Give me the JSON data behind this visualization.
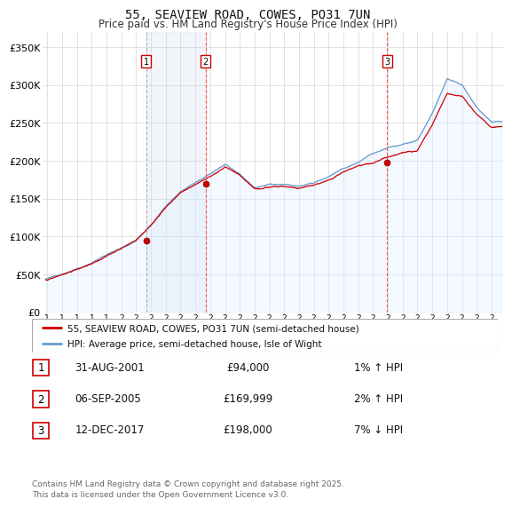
{
  "title": "55, SEAVIEW ROAD, COWES, PO31 7UN",
  "subtitle": "Price paid vs. HM Land Registry's House Price Index (HPI)",
  "ylim": [
    0,
    370000
  ],
  "yticks": [
    0,
    50000,
    100000,
    150000,
    200000,
    250000,
    300000,
    350000
  ],
  "ytick_labels": [
    "£0",
    "£50K",
    "£100K",
    "£150K",
    "£200K",
    "£250K",
    "£300K",
    "£350K"
  ],
  "xlim_start": 1994.7,
  "xlim_end": 2025.8,
  "xticks": [
    1995,
    1996,
    1997,
    1998,
    1999,
    2000,
    2001,
    2002,
    2003,
    2004,
    2005,
    2006,
    2007,
    2008,
    2009,
    2010,
    2011,
    2012,
    2013,
    2014,
    2015,
    2016,
    2017,
    2018,
    2019,
    2020,
    2021,
    2022,
    2023,
    2024,
    2025
  ],
  "background_color": "#ffffff",
  "plot_bg_color": "#ffffff",
  "grid_color": "#cccccc",
  "sale_color": "#cc0000",
  "hpi_line_color": "#6699cc",
  "hpi_fill_color": "#ddeeff",
  "purchase_dates": [
    2001.667,
    2005.68,
    2017.95
  ],
  "purchase_prices": [
    94000,
    169999,
    198000
  ],
  "purchase_labels": [
    "1",
    "2",
    "3"
  ],
  "purchase_pct": [
    "1% ↑ HPI",
    "2% ↑ HPI",
    "7% ↓ HPI"
  ],
  "purchase_date_labels": [
    "31-AUG-2001",
    "06-SEP-2005",
    "12-DEC-2017"
  ],
  "vline_colors": [
    "#aaaaaa",
    "#ff4444",
    "#ff4444"
  ],
  "vline_styles": [
    "--",
    "--",
    "--"
  ],
  "legend_sale_label": "55, SEAVIEW ROAD, COWES, PO31 7UN (semi-detached house)",
  "legend_hpi_label": "HPI: Average price, semi-detached house, Isle of Wight",
  "footer_line1": "Contains HM Land Registry data © Crown copyright and database right 2025.",
  "footer_line2": "This data is licensed under the Open Government Licence v3.0.",
  "hpi_key_years": [
    1995,
    1996,
    1997,
    1998,
    1999,
    2000,
    2001,
    2002,
    2003,
    2004,
    2005,
    2006,
    2007,
    2008,
    2009,
    2010,
    2011,
    2012,
    2013,
    2014,
    2015,
    2016,
    2017,
    2018,
    2019,
    2020,
    2021,
    2022,
    2023,
    2024,
    2025
  ],
  "hpi_key_values": [
    44000,
    50000,
    57000,
    65000,
    76000,
    86000,
    96000,
    116000,
    140000,
    160000,
    172000,
    183000,
    196000,
    183000,
    165000,
    169000,
    168000,
    166000,
    170000,
    179000,
    190000,
    199000,
    210000,
    220000,
    225000,
    228000,
    264000,
    310000,
    302000,
    272000,
    252000
  ],
  "sale_key_years": [
    1995,
    1996,
    1997,
    1998,
    1999,
    2000,
    2001,
    2002,
    2003,
    2004,
    2005,
    2006,
    2007,
    2008,
    2009,
    2010,
    2011,
    2012,
    2013,
    2014,
    2015,
    2016,
    2017,
    2018,
    2019,
    2020,
    2021,
    2022,
    2023,
    2024,
    2025
  ],
  "sale_key_values": [
    43000,
    49000,
    56000,
    64000,
    74000,
    84000,
    94000,
    113000,
    137000,
    158000,
    169999,
    181000,
    193000,
    182000,
    164000,
    168000,
    167000,
    165000,
    169000,
    178000,
    188000,
    196000,
    198000,
    207000,
    212000,
    215000,
    250000,
    290000,
    285000,
    263000,
    245000
  ]
}
